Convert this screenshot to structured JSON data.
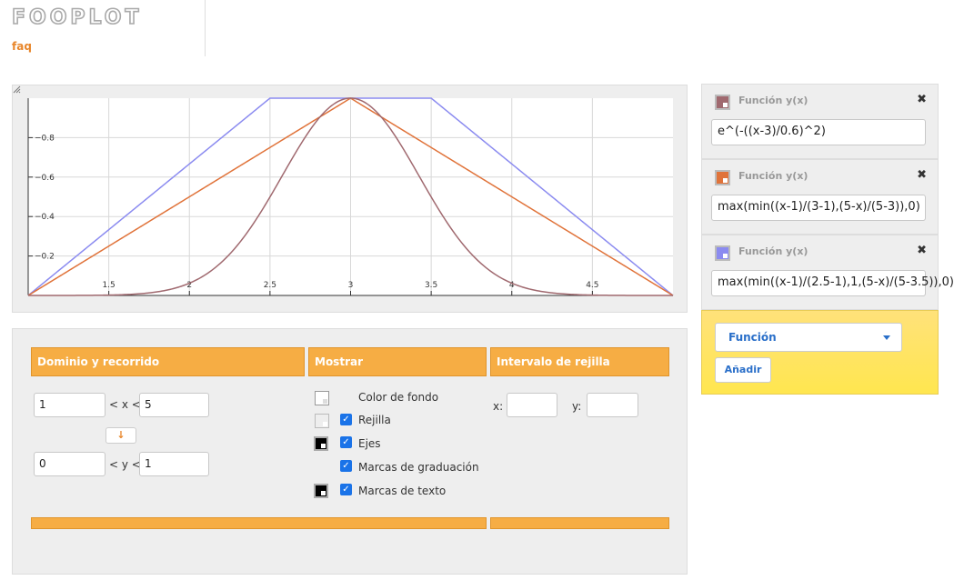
{
  "header": {
    "logo_text": "FOOPLOT",
    "faq_label": "faq"
  },
  "colors": {
    "accent_orange": "#f6ad44",
    "link_blue": "#2a6fc9",
    "grid": "#d8d8d8"
  },
  "chart_data": {
    "type": "line",
    "xlim": [
      1,
      5
    ],
    "ylim": [
      0,
      1
    ],
    "x_ticks": [
      "1.5",
      "2",
      "2.5",
      "3",
      "3.5",
      "4",
      "4.5"
    ],
    "y_ticks": [
      "0.2",
      "0.4",
      "0.6",
      "0.8"
    ],
    "grid": true,
    "series": [
      {
        "color": "#a0696f"
      },
      {
        "color": "#e0733a"
      },
      {
        "color": "#8b8bf0"
      }
    ]
  },
  "settings": {
    "domain": {
      "title": "Dominio y recorrido",
      "x_min": "1",
      "x_op": "< x <",
      "x_max": "5",
      "swap_icon": "↓",
      "y_min": "0",
      "y_op": "< y <",
      "y_max": "1"
    },
    "show": {
      "title": "Mostrar",
      "options": [
        {
          "label": "Color de fondo",
          "checked": false
        },
        {
          "label": "Rejilla",
          "checked": true
        },
        {
          "label": "Ejes",
          "checked": true
        },
        {
          "label": "Marcas de graduación",
          "checked": true
        },
        {
          "label": "Marcas de texto",
          "checked": true
        }
      ]
    },
    "grid_interval": {
      "title": "Intervalo de rejilla",
      "x_label": "x:",
      "x_value": "",
      "y_label": "y:",
      "y_value": ""
    }
  },
  "functions": [
    {
      "title": "Función y(x)",
      "expression": "e^(-((x-3)/0.6)^2)",
      "color": "#a0696f",
      "close": "✖"
    },
    {
      "title": "Función y(x)",
      "expression": "max(min((x-1)/(3-1),(5-x)/(5-3)),0)",
      "color": "#e0733a",
      "close": "✖"
    },
    {
      "title": "Función y(x)",
      "expression": "max(min((x-1)/(2.5-1),1,(5-x)/(5-3.5)),0)",
      "color": "#8b8bf0",
      "close": "✖"
    }
  ],
  "add_panel": {
    "select_value": "Función",
    "add_label": "Añadir"
  }
}
